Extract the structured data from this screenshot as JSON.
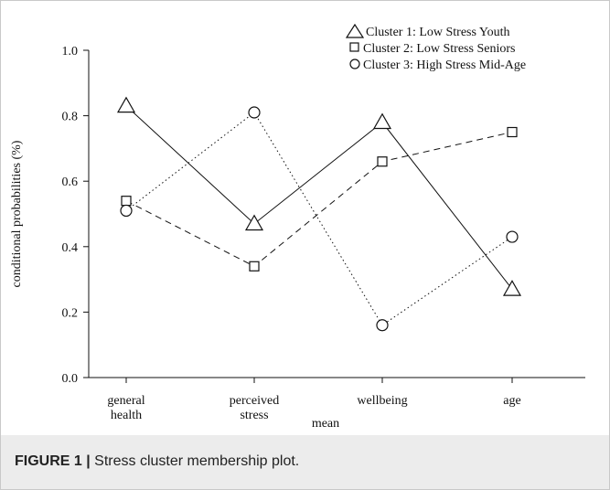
{
  "caption": {
    "figure_label": "FIGURE 1 |",
    "text": " Stress cluster membership plot."
  },
  "chart_data": {
    "type": "line",
    "categories": [
      [
        "general",
        "health"
      ],
      [
        "perceived",
        "stress"
      ],
      [
        "wellbeing"
      ],
      [
        "age"
      ]
    ],
    "xlabel": "mean",
    "ylabel": "conditional probabilities (%)",
    "ylim": [
      0,
      1
    ],
    "yticks": [
      "0.0",
      "0.2",
      "0.4",
      "0.6",
      "0.8",
      "1.0"
    ],
    "legend_position": "top-right",
    "grid": false,
    "series": [
      {
        "name": "Cluster 1: Low Stress Youth",
        "marker": "triangle",
        "line": "solid",
        "values": [
          0.83,
          0.47,
          0.78,
          0.27
        ]
      },
      {
        "name": "Cluster 2: Low Stress Seniors",
        "marker": "square",
        "line": "dashed",
        "values": [
          0.54,
          0.34,
          0.66,
          0.75
        ]
      },
      {
        "name": "Cluster 3: High Stress Mid-Age",
        "marker": "circle",
        "line": "dotted",
        "values": [
          0.51,
          0.81,
          0.16,
          0.43
        ]
      }
    ]
  }
}
